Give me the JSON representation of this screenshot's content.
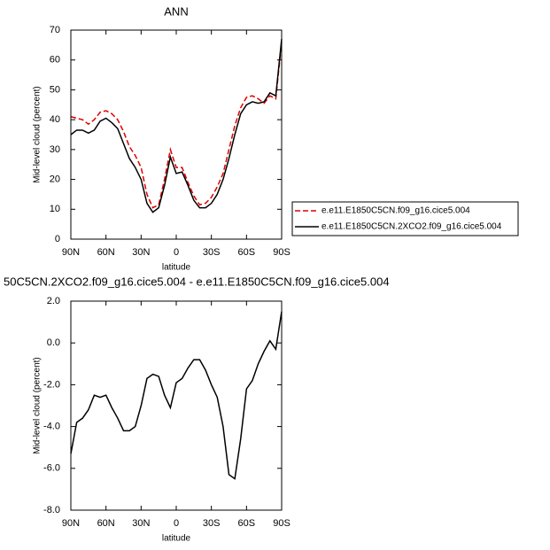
{
  "chart_data": [
    {
      "type": "line",
      "title": "ANN",
      "xlabel": "latitude",
      "ylabel": "Mid-level cloud (percent)",
      "x": [
        90,
        85,
        80,
        75,
        70,
        65,
        60,
        55,
        50,
        45,
        40,
        35,
        30,
        25,
        20,
        15,
        10,
        5,
        0,
        -5,
        -10,
        -15,
        -20,
        -25,
        -30,
        -35,
        -40,
        -45,
        -50,
        -55,
        -60,
        -65,
        -70,
        -75,
        -80,
        -85,
        -90
      ],
      "series": [
        {
          "name": "e.e11.E1850C5CN.f09_g16.cice5.004",
          "color": "#e00000",
          "dashed": true,
          "values": [
            41,
            40.5,
            40,
            38.5,
            40,
            42.5,
            43,
            42,
            40,
            36,
            31,
            28,
            24,
            15,
            10.5,
            11.5,
            20,
            30,
            24,
            24,
            19,
            14.5,
            11.5,
            12,
            14,
            17.5,
            22,
            30,
            38,
            44,
            47.5,
            48,
            47,
            45.5,
            48,
            47,
            66
          ]
        },
        {
          "name": "e.e11.E1850C5CN.2XCO2.f09_g16.cice5.004",
          "color": "#000000",
          "dashed": false,
          "values": [
            35,
            36.5,
            36.5,
            35.5,
            36.5,
            39.5,
            40.5,
            39,
            37,
            32,
            27,
            24,
            20,
            12,
            9,
            10.5,
            18,
            27.5,
            22,
            22.5,
            18,
            13,
            10.5,
            10.5,
            12,
            15,
            20,
            27,
            35,
            42,
            45,
            46,
            45.5,
            46,
            49,
            48,
            67
          ]
        }
      ],
      "xlim": [
        90,
        -90
      ],
      "xticks": [
        {
          "value": 90,
          "label": "90N"
        },
        {
          "value": 60,
          "label": "60N"
        },
        {
          "value": 30,
          "label": "30N"
        },
        0,
        {
          "value": -30,
          "label": "30S"
        },
        {
          "value": -60,
          "label": "60S"
        },
        {
          "value": -90,
          "label": "90S"
        }
      ],
      "ylim": [
        0,
        70
      ],
      "yticks": [
        0,
        10,
        20,
        30,
        40,
        50,
        60,
        70
      ],
      "legend": "right"
    },
    {
      "type": "line",
      "title": "50C5CN.2XCO2.f09_g16.cice5.004 - e.e11.E1850C5CN.f09_g16.cice5.004",
      "xlabel": "latitude",
      "ylabel": "Mid-level cloud (percent)",
      "x": [
        90,
        85,
        80,
        75,
        70,
        65,
        60,
        55,
        50,
        45,
        40,
        35,
        30,
        25,
        20,
        15,
        10,
        5,
        0,
        -5,
        -10,
        -15,
        -20,
        -25,
        -30,
        -35,
        -40,
        -45,
        -50,
        -55,
        -60,
        -65,
        -70,
        -75,
        -80,
        -85,
        -90
      ],
      "series": [
        {
          "color": "#000000",
          "dashed": false,
          "values": [
            -5.3,
            -3.8,
            -3.6,
            -3.2,
            -2.5,
            -2.6,
            -2.5,
            -3.1,
            -3.6,
            -4.2,
            -4.2,
            -4.0,
            -3.0,
            -1.7,
            -1.5,
            -1.6,
            -2.5,
            -3.1,
            -1.9,
            -1.7,
            -1.2,
            -0.8,
            -0.8,
            -1.3,
            -2.0,
            -2.6,
            -4.0,
            -6.3,
            -6.5,
            -4.6,
            -2.2,
            -1.8,
            -1.0,
            -0.4,
            0.1,
            -0.3,
            1.5
          ]
        }
      ],
      "xlim": [
        90,
        -90
      ],
      "xticks": [
        {
          "value": 90,
          "label": "90N"
        },
        {
          "value": 60,
          "label": "60N"
        },
        {
          "value": 30,
          "label": "30N"
        },
        0,
        {
          "value": -30,
          "label": "30S"
        },
        {
          "value": -60,
          "label": "60S"
        },
        {
          "value": -90,
          "label": "90S"
        }
      ],
      "ylim": [
        -8,
        2
      ],
      "yticks": [
        {
          "value": 2,
          "label": "2.0"
        },
        {
          "value": 0,
          "label": "0.0"
        },
        {
          "value": -2,
          "label": "-2.0"
        },
        {
          "value": -4,
          "label": "-4.0"
        },
        {
          "value": -6,
          "label": "-6.0"
        },
        {
          "value": -8,
          "label": "-8.0"
        }
      ]
    }
  ]
}
